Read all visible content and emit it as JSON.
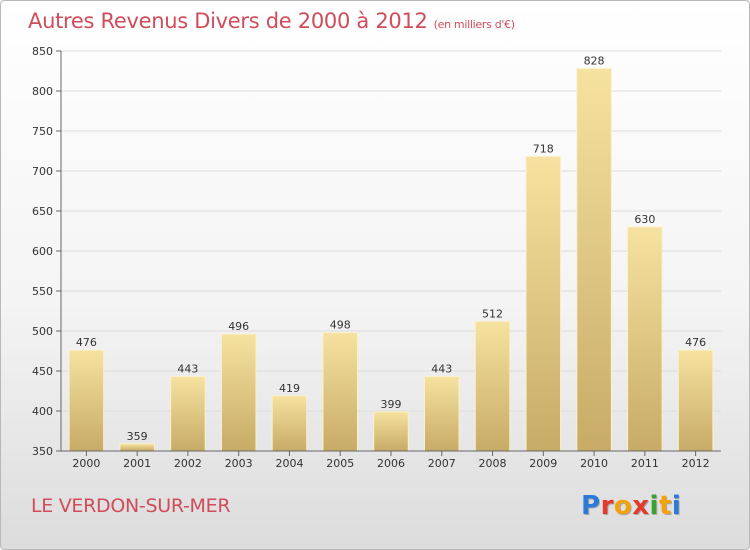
{
  "header": {
    "title": "Autres Revenus Divers de 2000 à 2012",
    "subtitle": "(en milliers d'€)"
  },
  "footer": {
    "commune": "LE VERDON-SUR-MER",
    "logo_text": "Proxiti",
    "logo_colors": [
      "#2a7ad8",
      "#e23b2b",
      "#f3a20b",
      "#e23b2b",
      "#3ba135",
      "#f3a20b",
      "#2a7ad8"
    ]
  },
  "colors": {
    "title": "#d04c5a",
    "bar_top": "#f6e2a0",
    "bar_bottom": "#c7ab66",
    "grid": "#dcdcdc"
  },
  "chart_data": {
    "type": "bar",
    "title": "Autres Revenus Divers de 2000 à 2012",
    "subtitle": "(en milliers d'€)",
    "xlabel": "",
    "ylabel": "",
    "ylim": [
      350,
      850
    ],
    "yticks": [
      350,
      400,
      450,
      500,
      550,
      600,
      650,
      700,
      750,
      800,
      850
    ],
    "grid": true,
    "categories": [
      "2000",
      "2001",
      "2002",
      "2003",
      "2004",
      "2005",
      "2006",
      "2007",
      "2008",
      "2009",
      "2010",
      "2011",
      "2012"
    ],
    "values": [
      476,
      359,
      443,
      496,
      419,
      498,
      399,
      443,
      512,
      718,
      828,
      630,
      476
    ]
  }
}
